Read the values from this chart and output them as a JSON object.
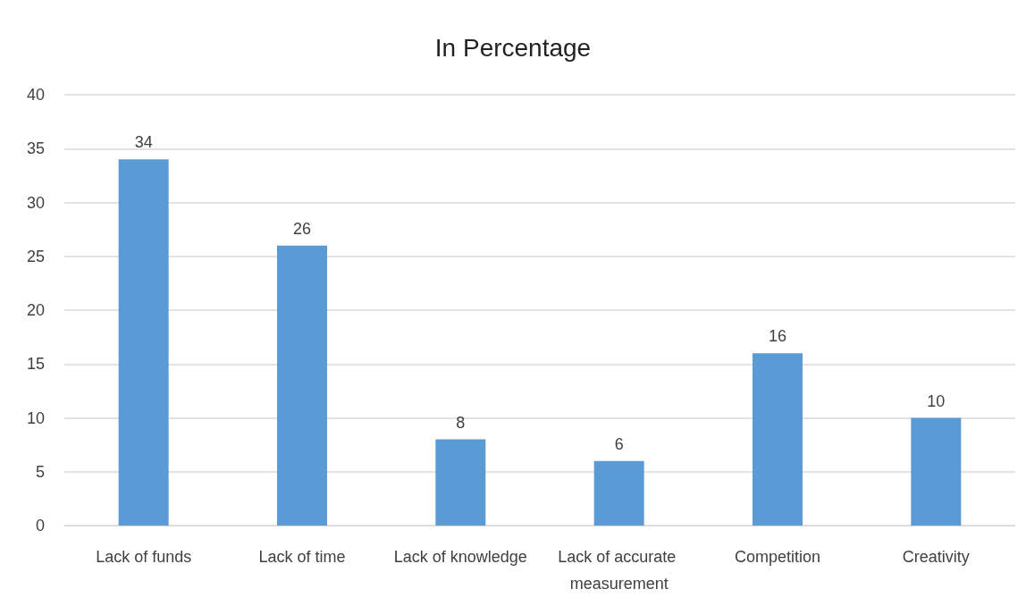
{
  "chart_data": {
    "type": "bar",
    "title": "In Percentage",
    "categories": [
      "Lack of funds",
      "Lack of time",
      "Lack of knowledge",
      "Lack of accurate measurement",
      "Competition",
      "Creativity"
    ],
    "values": [
      34,
      26,
      8,
      6,
      16,
      10
    ],
    "color": "#5b9bd5",
    "ylim": [
      0,
      40
    ],
    "yticks": [
      0,
      5,
      10,
      15,
      20,
      25,
      30,
      35,
      40
    ],
    "grid": "y",
    "data_labels": true
  }
}
